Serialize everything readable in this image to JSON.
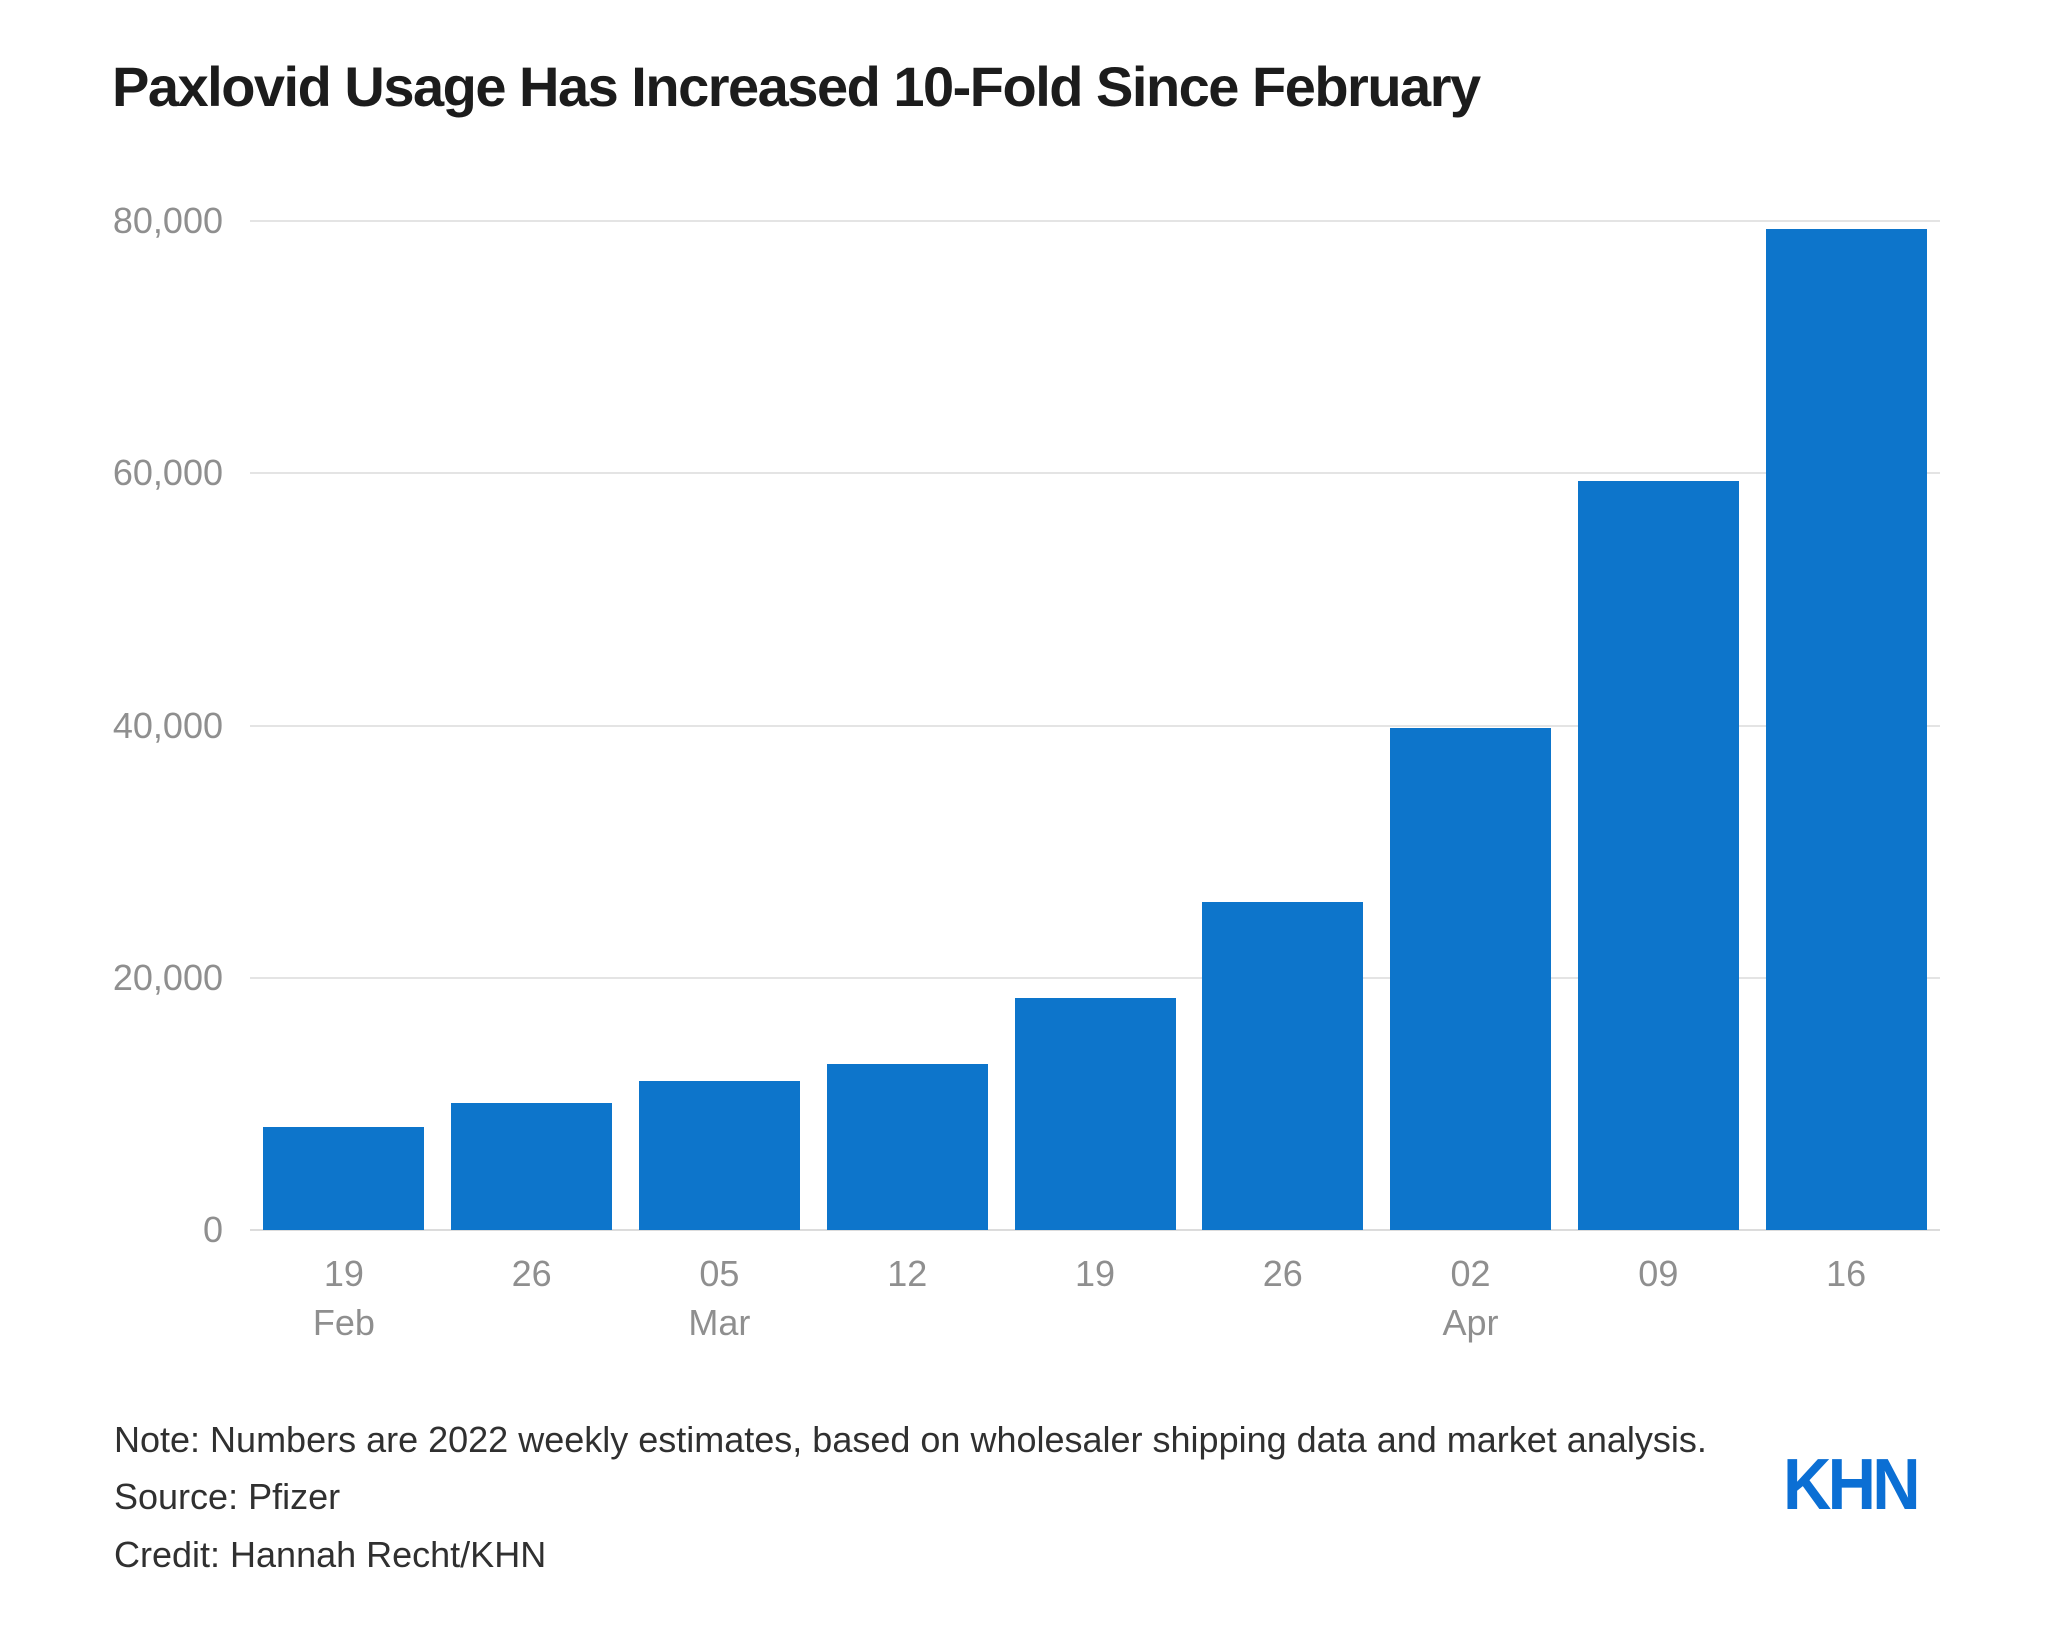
{
  "header": {
    "title": "Paxlovid Usage Has Increased 10-Fold Since February"
  },
  "chart_data": {
    "type": "bar",
    "title": "Paxlovid Usage Has Increased 10-Fold Since February",
    "x": [
      {
        "day": "19",
        "month": "Feb"
      },
      {
        "day": "26"
      },
      {
        "day": "05",
        "month": "Mar"
      },
      {
        "day": "12"
      },
      {
        "day": "19"
      },
      {
        "day": "26"
      },
      {
        "day": "02",
        "month": "Apr"
      },
      {
        "day": "09"
      },
      {
        "day": "16"
      }
    ],
    "values": [
      8200,
      10100,
      11800,
      13200,
      18400,
      26000,
      39800,
      59400,
      79400
    ],
    "y_ticks": [
      {
        "value": 0,
        "label": "0"
      },
      {
        "value": 20000,
        "label": "20,000"
      },
      {
        "value": 40000,
        "label": "40,000"
      },
      {
        "value": 60000,
        "label": "60,000"
      },
      {
        "value": 80000,
        "label": "80,000"
      }
    ],
    "ylim": [
      0,
      80000
    ],
    "xlabel": "",
    "ylabel": "",
    "grid": "horizontal",
    "legend": "none",
    "bar_color": "#0d75cb"
  },
  "footer": {
    "note": "Note: Numbers are 2022 weekly estimates, based on wholesaler shipping data and market analysis.",
    "source": "Source: Pfizer",
    "credit": "Credit: Hannah Recht/KHN"
  },
  "logo": {
    "text": "KHN",
    "color": "#0b6fd4"
  },
  "colors": {
    "bar": "#0d75cb",
    "logo": "#0b6fd4",
    "title_text": "#1c1c1c",
    "axis_text": "#8f8f8f",
    "gridline": "#e4e4e4",
    "zero_line": "#dcdcdc",
    "footer_text": "#303030",
    "background": "#ffffff"
  }
}
